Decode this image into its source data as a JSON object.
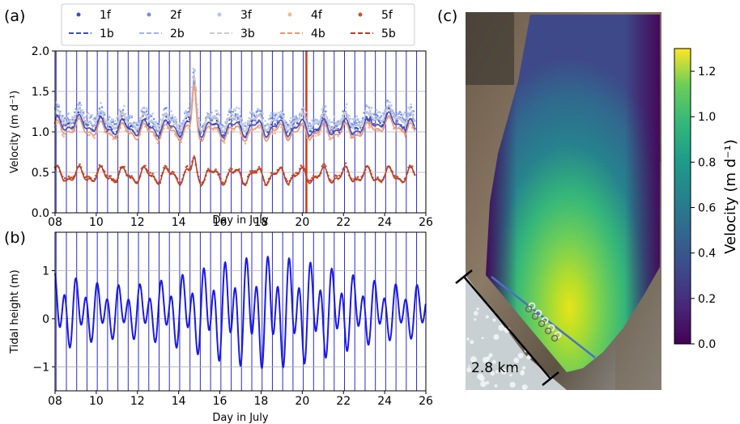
{
  "panels": {
    "a": "(a)",
    "b": "(b)",
    "c": "(c)"
  },
  "chart_data": [
    {
      "id": "a",
      "type": "scatter",
      "xlabel": "Day in July",
      "ylabel": "Velocity (m d⁻¹)",
      "xlim": [
        8,
        26
      ],
      "ylim": [
        0,
        2.0
      ],
      "xticks": [
        "08",
        "10",
        "12",
        "14",
        "16",
        "18",
        "20",
        "22",
        "24",
        "26"
      ],
      "yticks": [
        "0.0",
        "0.5",
        "1.0",
        "1.5",
        "2.0"
      ],
      "grid": true,
      "legend_position": "top",
      "vertical_marker": 20.2,
      "series": [
        {
          "name": "1f",
          "style": "dot",
          "color": "#3b4fc8",
          "base": 1.08
        },
        {
          "name": "2f",
          "style": "dot",
          "color": "#6f8fe8",
          "base": 1.15
        },
        {
          "name": "3f",
          "style": "dot",
          "color": "#b8c6f2",
          "base": 1.18
        },
        {
          "name": "4f",
          "style": "dot",
          "color": "#f2b898",
          "base": 1.02
        },
        {
          "name": "5f",
          "style": "dot",
          "color": "#c8542e",
          "base": 0.47
        },
        {
          "name": "1b",
          "style": "dash",
          "color": "#3b4fc8",
          "base": 1.05
        },
        {
          "name": "2b",
          "style": "dash",
          "color": "#9fb4ee",
          "base": 1.12
        },
        {
          "name": "3b",
          "style": "dash",
          "color": "#cccccc",
          "base": 1.13
        },
        {
          "name": "4b",
          "style": "dash",
          "color": "#e89878",
          "base": 1.0
        },
        {
          "name": "5b",
          "style": "dash",
          "color": "#b84028",
          "base": 0.46
        }
      ]
    },
    {
      "id": "b",
      "type": "line",
      "xlabel": "Day in July",
      "ylabel": "Tidal height (m)",
      "xlim": [
        8,
        26
      ],
      "ylim": [
        -1.5,
        1.8
      ],
      "xticks": [
        "08",
        "10",
        "12",
        "14",
        "16",
        "18",
        "20",
        "22",
        "24",
        "26"
      ],
      "yticks": [
        "−1",
        "0",
        "1"
      ],
      "grid": true,
      "color": "#1a1ae6",
      "series": [
        {
          "amplitude_range": [
            0.5,
            1.65
          ],
          "period_days": 0.517
        }
      ]
    },
    {
      "id": "c",
      "type": "heatmap",
      "colorbar_label": "Velocity (m d⁻¹)",
      "colorbar_ticks": [
        "0.0",
        "0.2",
        "0.4",
        "0.6",
        "0.8",
        "1.0",
        "1.2"
      ],
      "colorbar_range": [
        0,
        1.3
      ],
      "colormap": "viridis",
      "scalebar_label": "2.8 km",
      "station_count": 5
    }
  ]
}
